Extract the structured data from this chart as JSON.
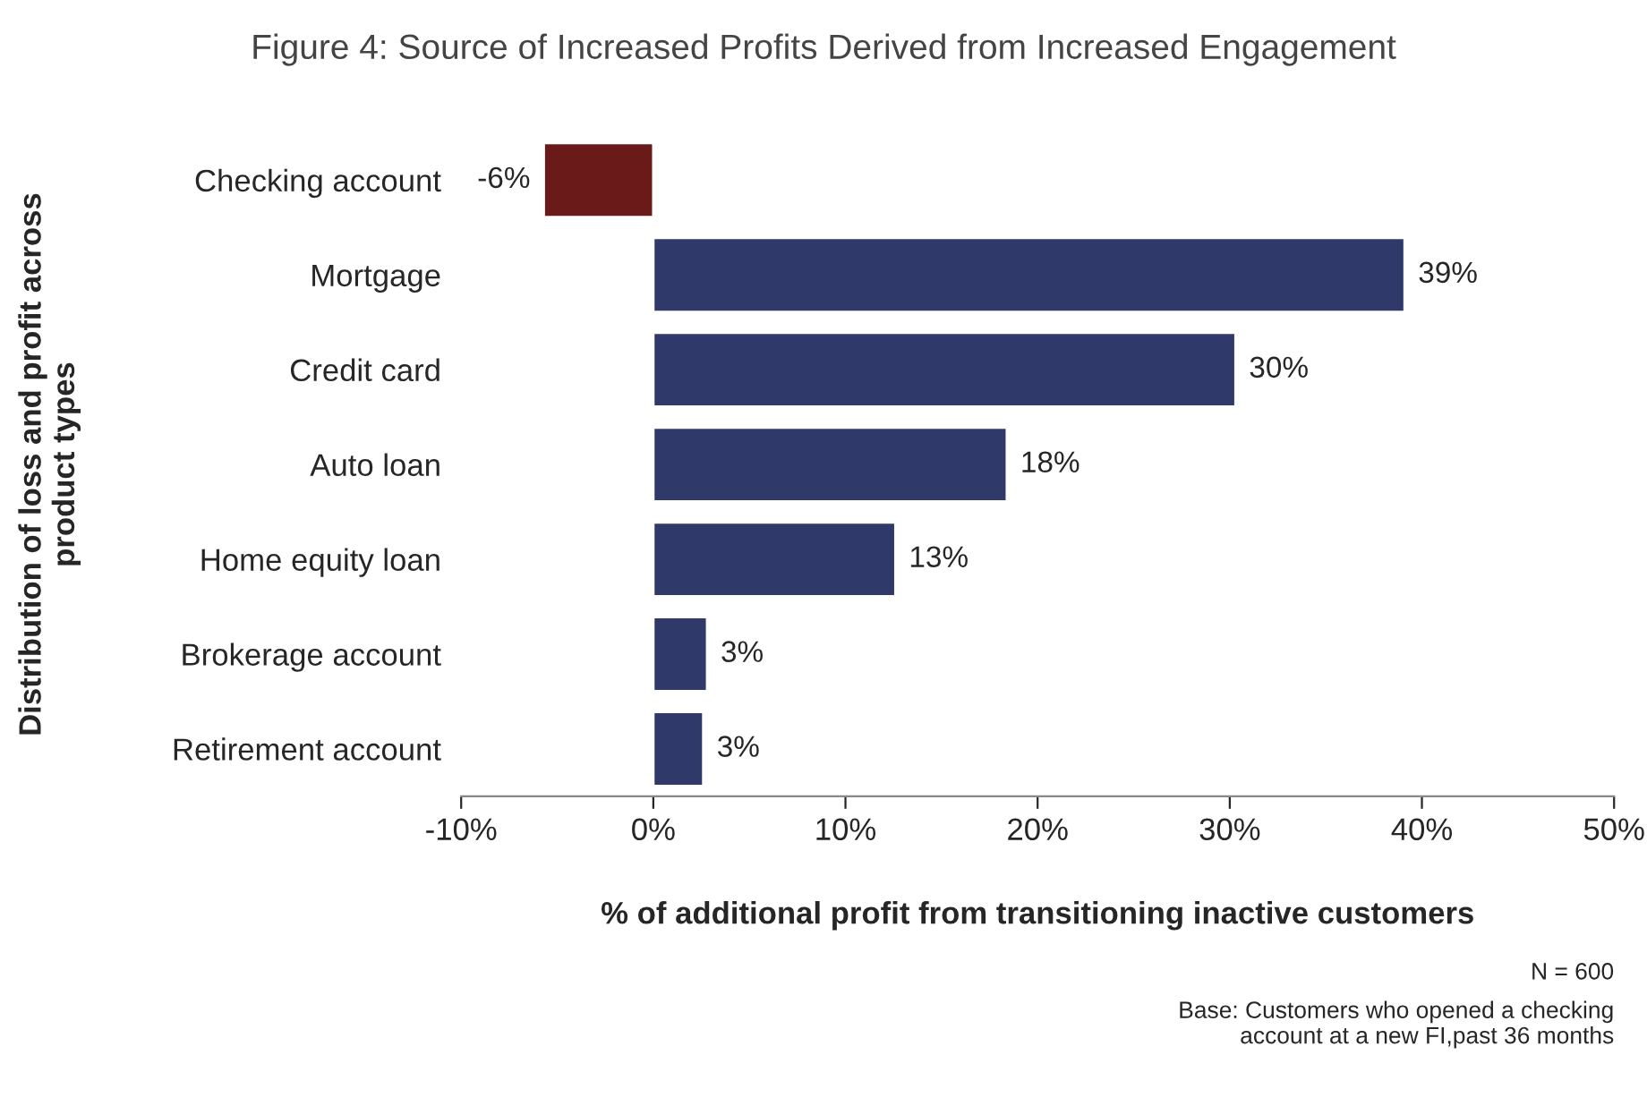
{
  "chart_data": {
    "type": "bar",
    "orientation": "horizontal",
    "title": "Figure 4: Source of Increased Profits Derived from Increased Engagement",
    "xlabel": "% of additional profit from transitioning inactive customers",
    "ylabel": "Distribution of loss and profit across\nproduct types",
    "categories": [
      "Checking account",
      "Mortgage",
      "Credit card",
      "Auto loan",
      "Home equity loan",
      "Brokerage account",
      "Retirement account"
    ],
    "values": [
      -5.7,
      39.1,
      30.3,
      18.4,
      12.6,
      2.8,
      2.6
    ],
    "value_labels": [
      "-6%",
      "39%",
      "30%",
      "18%",
      "13%",
      "3%",
      "3%"
    ],
    "colors": [
      "#6b1a1a",
      "#2f3a6b",
      "#2f3a6b",
      "#2f3a6b",
      "#2f3a6b",
      "#2f3a6b",
      "#2f3a6b"
    ],
    "xlim": [
      -10,
      50
    ],
    "xticks": [
      {
        "value": -10,
        "label": "-10%"
      },
      {
        "value": 0,
        "label": "0%"
      },
      {
        "value": 10,
        "label": "10%"
      },
      {
        "value": 20,
        "label": "20%"
      },
      {
        "value": 30,
        "label": "30%"
      },
      {
        "value": 40,
        "label": "40%"
      },
      {
        "value": 50,
        "label": "50%"
      }
    ],
    "grid": false,
    "annotations": [
      "N = 600",
      "Base: Customers who opened a checking\naccount at a new FI,past 36 months"
    ]
  }
}
